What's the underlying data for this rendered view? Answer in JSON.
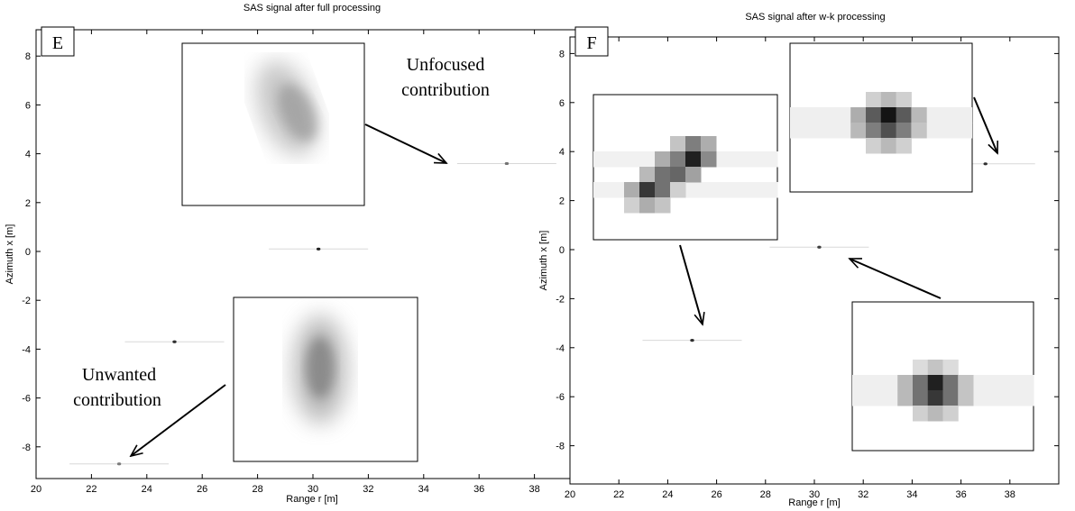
{
  "chart_data": [
    {
      "type": "heatmap",
      "panel": "E",
      "title": "SAS signal after full processing",
      "xlabel": "Range r [m]",
      "ylabel": "Azimuth x [m]",
      "xlim": [
        20,
        40
      ],
      "ylim": [
        -9,
        9
      ],
      "xticks": [
        20,
        22,
        24,
        26,
        28,
        30,
        32,
        34,
        36,
        38
      ],
      "yticks": [
        -8,
        -6,
        -4,
        -2,
        0,
        2,
        4,
        6,
        8
      ],
      "grid": false,
      "points": [
        {
          "x": 37.0,
          "y": 3.6,
          "weight": 0.5
        },
        {
          "x": 30.2,
          "y": 0.1,
          "weight": 1.0
        },
        {
          "x": 25.0,
          "y": -3.7,
          "weight": 0.9
        },
        {
          "x": 23.0,
          "y": -8.7,
          "weight": 0.45
        }
      ],
      "annotations": [
        {
          "lines": [
            "Unfocused",
            "contribution"
          ]
        },
        {
          "lines": [
            "Unwanted",
            "contribution"
          ]
        }
      ]
    },
    {
      "type": "heatmap",
      "panel": "F",
      "title": "SAS signal after w-k processing",
      "xlabel": "Range r [m]",
      "ylabel": "Azimuth x [m]",
      "xlim": [
        20,
        40
      ],
      "ylim": [
        -9,
        9
      ],
      "xticks": [
        20,
        22,
        24,
        26,
        28,
        30,
        32,
        34,
        36,
        38
      ],
      "yticks": [
        -8,
        -6,
        -4,
        -2,
        0,
        2,
        4,
        6,
        8
      ],
      "grid": false,
      "points": [
        {
          "x": 37.0,
          "y": 3.5,
          "weight": 0.9
        },
        {
          "x": 30.2,
          "y": 0.1,
          "weight": 0.8
        },
        {
          "x": 25.0,
          "y": -3.7,
          "weight": 0.9
        }
      ],
      "annotations": []
    }
  ]
}
